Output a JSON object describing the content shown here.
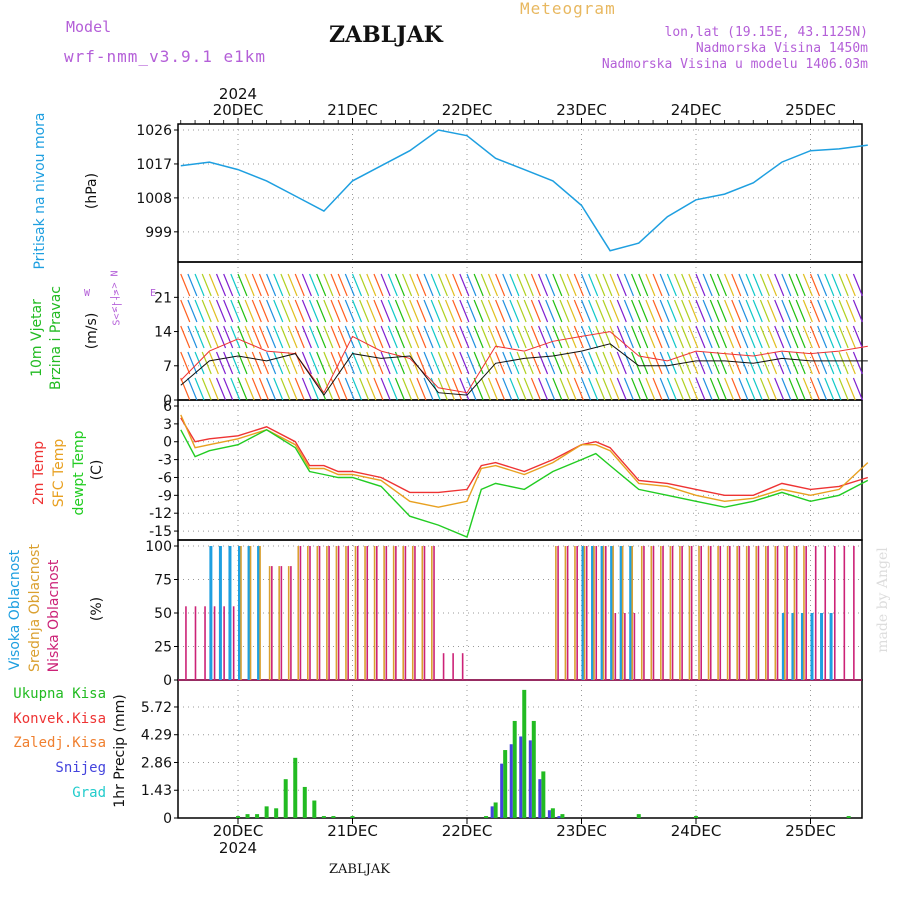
{
  "header": {
    "model_label": "Model",
    "model_name": "wrf-nmm_v3.9.1  e1km",
    "station": "ZABLJAK",
    "product": "Meteogram",
    "coords": "lon,lat (19.15E, 43.1125N)",
    "elevation": "Nadmorska Visina 1450m",
    "model_elevation": "Nadmorska Visina u modelu 1406.03m",
    "year": "2024",
    "footer_station": "ZABLJAK",
    "watermark": "made by Angel"
  },
  "days": [
    "20DEC",
    "21DEC",
    "22DEC",
    "23DEC",
    "24DEC",
    "25DEC"
  ],
  "side_labels": {
    "pressure": "Pritisak na nivou mora",
    "pressure_unit": "(hPa)",
    "wind_1": "10m Vjetar",
    "wind_2": "Brzina i Pravac",
    "wind_unit": "(m/s)",
    "compass_n": "<-|->  N",
    "compass_w": "W",
    "compass_e": "E",
    "compass_s": "S<-|->",
    "temp_1": "2m Temp",
    "temp_2": "SFC Temp",
    "temp_3": "dewpt Temp",
    "temp_unit": "(C)",
    "cloud_1": "Visoka Oblacnost",
    "cloud_2": "Srednja Oblacnost",
    "cloud_3": "Niska Oblacnost",
    "cloud_unit": "(%)",
    "precip_unit": "1hr Precip (mm)"
  },
  "precip_legend": [
    {
      "label": "Ukupna Kisa",
      "color": "#22bb22"
    },
    {
      "label": "Konvek.Kisa",
      "color": "#ee3333"
    },
    {
      "label": "Zaledj.Kisa",
      "color": "#f08030"
    },
    {
      "label": "Snijeg",
      "color": "#4444dd"
    },
    {
      "label": "Grad",
      "color": "#22cccc"
    }
  ],
  "colors": {
    "pressure": "#1e9fe0",
    "temp2m": "#ee3333",
    "sfc": "#e8a020",
    "dewpt": "#22cc22",
    "cloud_high": "#1e9fe0",
    "cloud_mid": "#daa030",
    "cloud_low": "#cc2277",
    "precip": "#22bb22",
    "snow": "#4444dd",
    "title_purple": "#b45fd8",
    "meteogram_gold": "#e8b860"
  },
  "chart_data": [
    {
      "type": "line",
      "name": "pressure",
      "ylabel": "Pritisak na nivou mora (hPa)",
      "yticks": [
        999,
        1008,
        1017,
        1026
      ],
      "ylim": [
        991,
        1026
      ],
      "x": [
        0,
        6,
        12,
        18,
        24,
        30,
        36,
        42,
        48,
        54,
        60,
        66,
        72,
        78,
        84,
        90,
        96,
        102,
        108,
        114,
        120,
        126,
        132,
        138,
        144
      ],
      "series": [
        {
          "values": [
            1016.5,
            1017.5,
            1015.5,
            1012.5,
            1008.5,
            1004.5,
            1012.5,
            1016.5,
            1020.5,
            1026.0,
            1024.5,
            1018.5,
            1015.5,
            1012.5,
            1006.0,
            994.0,
            996.0,
            1003.0,
            1007.5,
            1009.0,
            1012.0,
            1017.5,
            1020.5,
            1021.0,
            1022.0
          ]
        }
      ]
    },
    {
      "type": "line",
      "name": "wind",
      "ylabel": "10m Vjetar Brzina i Pravac (m/s)",
      "yticks": [
        0,
        7,
        14,
        21
      ],
      "ylim": [
        0,
        27
      ],
      "x": [
        0,
        6,
        12,
        18,
        24,
        30,
        36,
        42,
        48,
        54,
        60,
        66,
        72,
        78,
        84,
        90,
        96,
        102,
        108,
        114,
        120,
        126,
        132,
        138,
        144
      ],
      "series": [
        {
          "values": [
            4.0,
            10.0,
            12.5,
            10.0,
            9.5,
            1.5,
            13.0,
            10.0,
            8.5,
            2.5,
            1.5,
            11.0,
            10.0,
            12.0,
            13.0,
            14.0,
            9.0,
            8.0,
            10.0,
            9.5,
            9.0,
            10.0,
            9.5,
            10.0,
            11.0
          ]
        },
        {
          "values": [
            3.0,
            8.0,
            9.0,
            8.0,
            9.5,
            1.0,
            9.5,
            8.5,
            9.0,
            1.5,
            1.0,
            7.5,
            8.5,
            9.0,
            10.0,
            11.5,
            7.0,
            7.0,
            8.0,
            8.0,
            7.5,
            8.5,
            8.0,
            8.0,
            8.0
          ]
        }
      ]
    },
    {
      "type": "line",
      "name": "temperature",
      "ylabel": "2m Temp / SFC Temp / dewpt Temp (C)",
      "yticks": [
        -15,
        -12,
        -9,
        -6,
        -3,
        0,
        3,
        6
      ],
      "ylim": [
        -16.5,
        6
      ],
      "x": [
        0,
        3,
        6,
        12,
        18,
        24,
        27,
        30,
        33,
        36,
        42,
        48,
        54,
        60,
        63,
        66,
        72,
        78,
        84,
        87,
        90,
        96,
        102,
        108,
        114,
        120,
        126,
        132,
        138,
        144
      ],
      "series": [
        {
          "name": "2m Temp",
          "values": [
            4.0,
            0.0,
            0.5,
            1.0,
            2.5,
            0.0,
            -4.0,
            -4.0,
            -5.0,
            -5.0,
            -6.0,
            -8.5,
            -8.5,
            -8.0,
            -4.0,
            -3.5,
            -5.0,
            -3.0,
            -0.5,
            0.0,
            -1.0,
            -6.5,
            -7.0,
            -8.0,
            -9.0,
            -9.0,
            -7.0,
            -8.0,
            -7.5,
            -6.0
          ]
        },
        {
          "name": "SFC Temp",
          "values": [
            4.5,
            -1.0,
            -0.5,
            0.5,
            2.0,
            -0.5,
            -4.5,
            -4.5,
            -5.5,
            -5.5,
            -6.5,
            -10.0,
            -11.0,
            -10.0,
            -4.5,
            -4.0,
            -5.5,
            -3.5,
            -0.5,
            -0.5,
            -1.5,
            -7.0,
            -7.5,
            -9.0,
            -10.0,
            -9.5,
            -8.0,
            -9.0,
            -8.0,
            -3.5
          ]
        },
        {
          "name": "dewpt Temp",
          "values": [
            2.0,
            -2.5,
            -1.5,
            -0.5,
            2.0,
            -1.0,
            -5.0,
            -5.5,
            -6.0,
            -6.0,
            -7.5,
            -12.5,
            -14.0,
            -16.0,
            -8.0,
            -7.0,
            -8.0,
            -5.0,
            -3.0,
            -2.0,
            -4.0,
            -8.0,
            -9.0,
            -10.0,
            -11.0,
            -10.0,
            -8.5,
            -10.0,
            -9.0,
            -6.5
          ]
        }
      ]
    },
    {
      "type": "bar",
      "name": "cloud",
      "ylabel": "Oblacnost (%)",
      "yticks": [
        0,
        25,
        50,
        75,
        100
      ],
      "ylim": [
        0,
        100
      ],
      "x": [
        0,
        6,
        12,
        18,
        24,
        30,
        36,
        42,
        48,
        54,
        60,
        66,
        72,
        78,
        84,
        90,
        96,
        102,
        108,
        114,
        120,
        126,
        132,
        138,
        144
      ],
      "series": [
        {
          "name": "Visoka Oblacnost",
          "values": [
            0,
            100,
            100,
            0,
            0,
            0,
            0,
            0,
            0,
            0,
            0,
            0,
            0,
            0,
            100,
            100,
            0,
            0,
            0,
            0,
            0,
            50,
            50,
            0,
            0
          ]
        },
        {
          "name": "Srednja Oblacnost",
          "values": [
            0,
            0,
            100,
            85,
            100,
            100,
            100,
            100,
            100,
            0,
            0,
            0,
            0,
            100,
            100,
            100,
            100,
            100,
            100,
            100,
            100,
            100,
            0,
            0,
            0
          ]
        },
        {
          "name": "Niska Oblacnost",
          "values": [
            55,
            55,
            0,
            85,
            100,
            100,
            100,
            100,
            100,
            20,
            0,
            0,
            0,
            100,
            100,
            50,
            100,
            100,
            100,
            100,
            100,
            100,
            100,
            100,
            0
          ]
        }
      ]
    },
    {
      "type": "bar",
      "name": "precipitation",
      "ylabel": "1hr Precip (mm)",
      "yticks": [
        0,
        1.43,
        2.86,
        4.29,
        5.72
      ],
      "ylim": [
        0,
        6.8
      ],
      "x": [
        12,
        14,
        16,
        18,
        20,
        22,
        24,
        26,
        28,
        30,
        32,
        36,
        48,
        60,
        64,
        66,
        68,
        70,
        72,
        74,
        76,
        78,
        80,
        84,
        96,
        108,
        120,
        132,
        140
      ],
      "series": [
        {
          "name": "Ukupna Kisa",
          "values": [
            0.1,
            0.2,
            0.2,
            0.6,
            0.5,
            2.0,
            3.1,
            1.6,
            0.9,
            0.1,
            0.1,
            0.1,
            0.0,
            0.0,
            0.1,
            0.8,
            3.5,
            5.0,
            6.6,
            5.0,
            2.4,
            0.5,
            0.2,
            0.0,
            0.2,
            0.1,
            0.0,
            0.0,
            0.1
          ]
        },
        {
          "name": "Snijeg",
          "values": [
            0,
            0,
            0,
            0,
            0,
            0,
            0,
            0,
            0,
            0,
            0,
            0,
            0,
            0,
            0,
            0.6,
            2.8,
            3.8,
            4.2,
            4.0,
            2.0,
            0.4,
            0.1,
            0,
            0,
            0,
            0,
            0,
            0
          ]
        }
      ]
    }
  ]
}
